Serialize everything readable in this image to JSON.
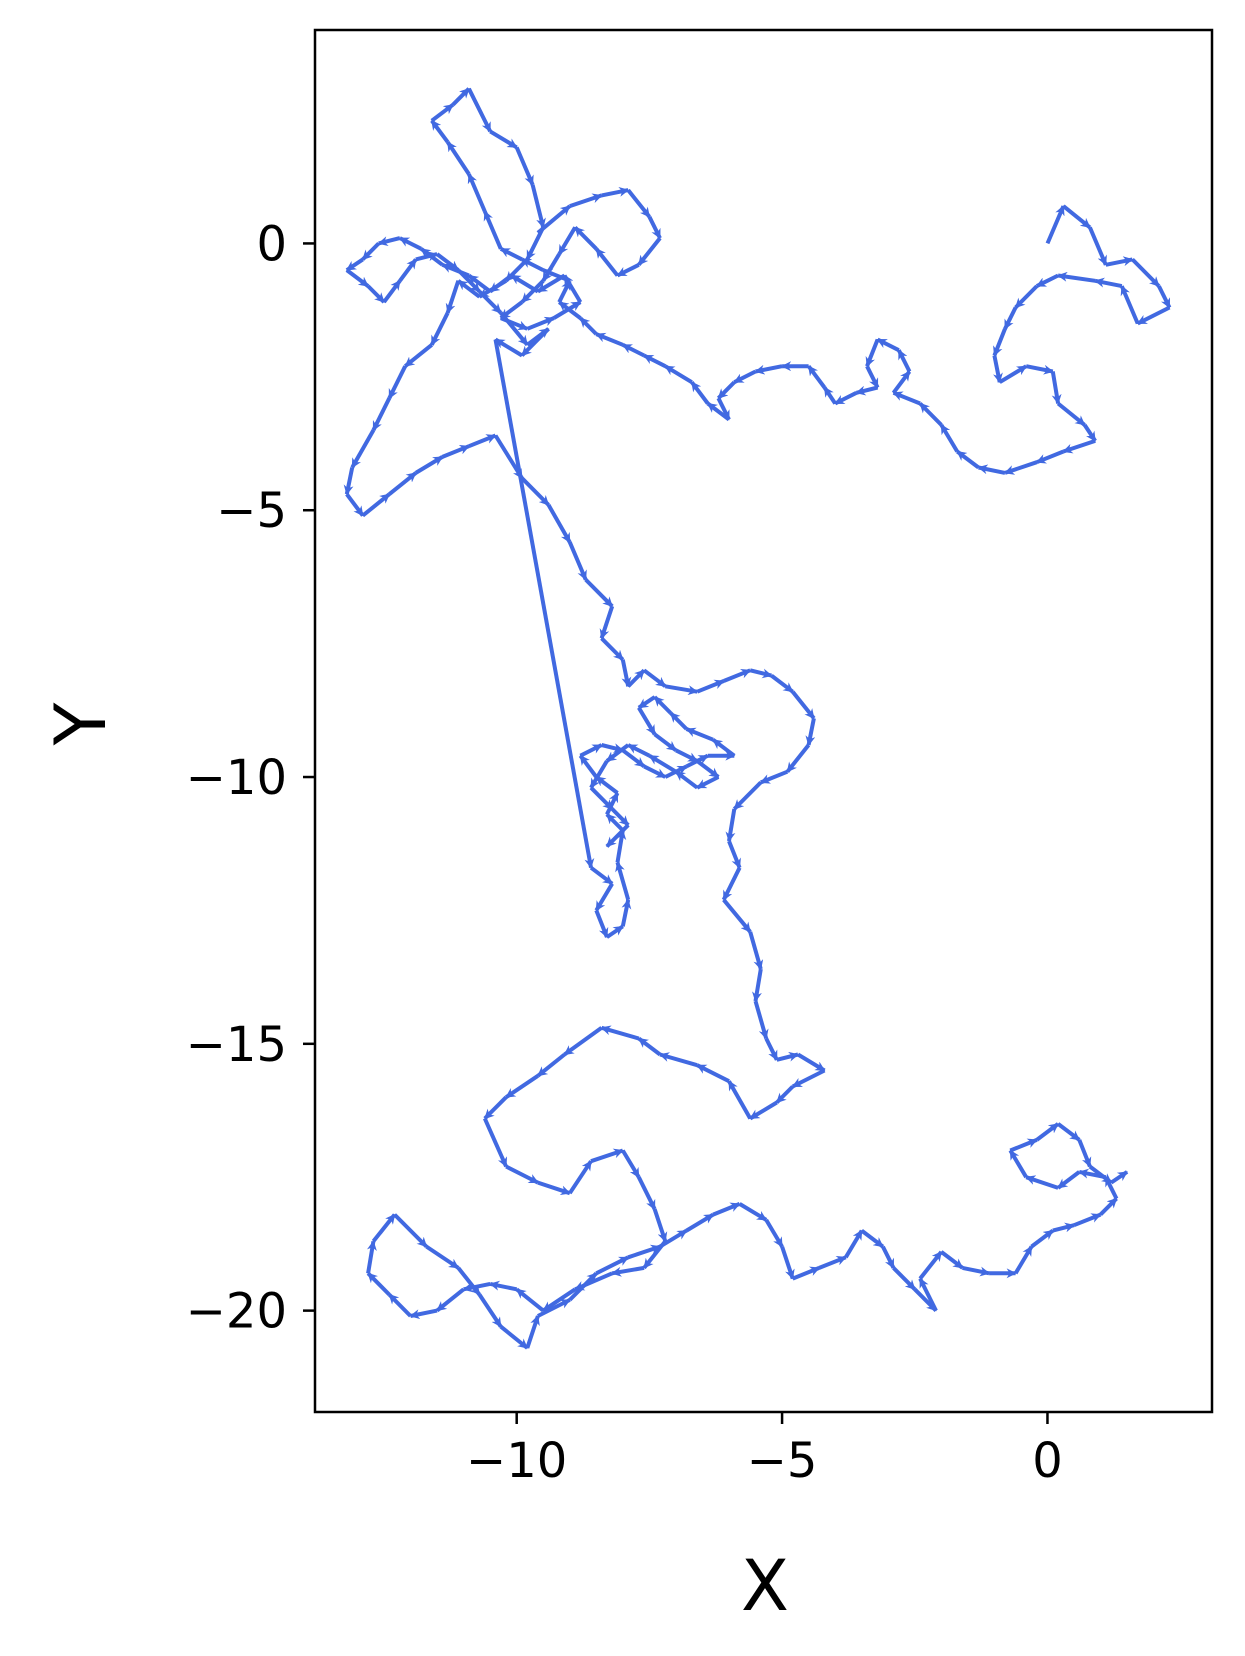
{
  "chart_data": {
    "type": "quiver",
    "xlabel": "X",
    "ylabel": "Y",
    "xlim": [
      -13.8,
      3.1
    ],
    "ylim": [
      -21.9,
      4.0
    ],
    "grid": false,
    "legend": "none",
    "colors": {
      "arrow": "#4169e1",
      "frame": "#000000",
      "background": "#ffffff"
    },
    "xticks": [
      {
        "value": -10,
        "label": "−10"
      },
      {
        "value": -5,
        "label": "−5"
      },
      {
        "value": 0,
        "label": "0"
      }
    ],
    "yticks": [
      {
        "value": 0,
        "label": "0"
      },
      {
        "value": -5,
        "label": "−5"
      },
      {
        "value": -10,
        "label": "−10"
      },
      {
        "value": -15,
        "label": "−15"
      },
      {
        "value": -20,
        "label": "−20"
      }
    ],
    "series": [
      {
        "points": [
          [
            0.0,
            0.0
          ],
          [
            0.3,
            0.7
          ],
          [
            0.8,
            0.3
          ],
          [
            1.1,
            -0.4
          ],
          [
            1.6,
            -0.3
          ],
          [
            2.1,
            -0.8
          ],
          [
            2.3,
            -1.2
          ],
          [
            1.7,
            -1.5
          ],
          [
            1.4,
            -0.8
          ],
          [
            0.9,
            -0.7
          ],
          [
            0.2,
            -0.6
          ],
          [
            -0.2,
            -0.8
          ],
          [
            -0.6,
            -1.2
          ],
          [
            -0.8,
            -1.6
          ],
          [
            -1.0,
            -2.1
          ],
          [
            -0.9,
            -2.6
          ],
          [
            -0.4,
            -2.3
          ],
          [
            0.1,
            -2.4
          ],
          [
            0.2,
            -3.0
          ],
          [
            0.7,
            -3.4
          ],
          [
            0.9,
            -3.7
          ],
          [
            0.3,
            -3.9
          ],
          [
            -0.2,
            -4.1
          ],
          [
            -0.8,
            -4.3
          ],
          [
            -1.3,
            -4.2
          ],
          [
            -1.7,
            -3.9
          ],
          [
            -2.0,
            -3.4
          ],
          [
            -2.4,
            -3.0
          ],
          [
            -2.9,
            -2.8
          ],
          [
            -2.6,
            -2.4
          ],
          [
            -2.8,
            -2.0
          ],
          [
            -3.2,
            -1.8
          ],
          [
            -3.4,
            -2.3
          ],
          [
            -3.2,
            -2.7
          ],
          [
            -3.6,
            -2.8
          ],
          [
            -4.0,
            -3.0
          ],
          [
            -4.2,
            -2.7
          ],
          [
            -4.5,
            -2.3
          ],
          [
            -5.0,
            -2.3
          ],
          [
            -5.5,
            -2.4
          ],
          [
            -5.9,
            -2.6
          ],
          [
            -6.2,
            -2.9
          ],
          [
            -6.0,
            -3.3
          ],
          [
            -6.4,
            -3.0
          ],
          [
            -6.7,
            -2.6
          ],
          [
            -7.2,
            -2.3
          ],
          [
            -7.6,
            -2.1
          ],
          [
            -8.0,
            -1.9
          ],
          [
            -8.5,
            -1.7
          ],
          [
            -8.8,
            -1.4
          ],
          [
            -9.2,
            -1.1
          ],
          [
            -9.0,
            -0.7
          ],
          [
            -9.5,
            -0.5
          ],
          [
            -9.9,
            -0.3
          ],
          [
            -10.3,
            -0.1
          ],
          [
            -10.6,
            0.6
          ],
          [
            -10.9,
            1.3
          ],
          [
            -11.3,
            1.9
          ],
          [
            -11.6,
            2.3
          ],
          [
            -11.2,
            2.6
          ],
          [
            -10.9,
            2.9
          ],
          [
            -10.5,
            2.1
          ],
          [
            -10.0,
            1.8
          ],
          [
            -9.7,
            1.1
          ],
          [
            -9.5,
            0.3
          ],
          [
            -9.8,
            -0.3
          ],
          [
            -10.2,
            -0.7
          ],
          [
            -10.7,
            -1.0
          ],
          [
            -11.1,
            -0.7
          ],
          [
            -11.3,
            -1.3
          ],
          [
            -11.6,
            -1.9
          ],
          [
            -12.1,
            -2.3
          ],
          [
            -12.4,
            -2.9
          ],
          [
            -12.7,
            -3.5
          ],
          [
            -13.1,
            -4.2
          ],
          [
            -13.2,
            -4.7
          ],
          [
            -12.9,
            -5.1
          ],
          [
            -12.4,
            -4.7
          ],
          [
            -11.9,
            -4.3
          ],
          [
            -11.4,
            -4.0
          ],
          [
            -10.9,
            -3.8
          ],
          [
            -10.4,
            -3.6
          ],
          [
            -9.9,
            -4.4
          ],
          [
            -9.4,
            -4.9
          ],
          [
            -9.0,
            -5.6
          ],
          [
            -8.7,
            -6.3
          ],
          [
            -8.2,
            -6.8
          ],
          [
            -8.4,
            -7.4
          ],
          [
            -8.0,
            -7.8
          ],
          [
            -7.9,
            -8.3
          ],
          [
            -7.6,
            -8.0
          ],
          [
            -7.2,
            -8.3
          ],
          [
            -6.6,
            -8.4
          ],
          [
            -6.1,
            -8.2
          ],
          [
            -5.6,
            -8.0
          ],
          [
            -5.2,
            -8.1
          ],
          [
            -4.8,
            -8.4
          ],
          [
            -4.4,
            -8.9
          ],
          [
            -4.5,
            -9.4
          ],
          [
            -4.9,
            -9.9
          ],
          [
            -5.4,
            -10.1
          ],
          [
            -5.9,
            -10.6
          ],
          [
            -6.0,
            -11.2
          ],
          [
            -5.8,
            -11.7
          ],
          [
            -6.1,
            -12.3
          ],
          [
            -5.6,
            -12.9
          ],
          [
            -5.4,
            -13.6
          ],
          [
            -5.5,
            -14.2
          ],
          [
            -5.3,
            -14.9
          ],
          [
            -5.1,
            -15.3
          ],
          [
            -4.7,
            -15.2
          ],
          [
            -4.2,
            -15.5
          ],
          [
            -4.8,
            -15.8
          ],
          [
            -5.1,
            -16.1
          ],
          [
            -5.6,
            -16.4
          ],
          [
            -6.0,
            -15.7
          ],
          [
            -6.6,
            -15.4
          ],
          [
            -7.3,
            -15.2
          ],
          [
            -7.7,
            -14.9
          ],
          [
            -8.4,
            -14.7
          ],
          [
            -9.1,
            -15.2
          ],
          [
            -9.6,
            -15.6
          ],
          [
            -10.2,
            -16.0
          ],
          [
            -10.6,
            -16.4
          ],
          [
            -10.2,
            -17.3
          ],
          [
            -9.6,
            -17.6
          ],
          [
            -9.0,
            -17.8
          ],
          [
            -8.6,
            -17.2
          ],
          [
            -8.0,
            -17.0
          ],
          [
            -7.7,
            -17.5
          ],
          [
            -7.4,
            -18.1
          ],
          [
            -7.2,
            -18.7
          ],
          [
            -7.6,
            -19.2
          ],
          [
            -8.2,
            -19.3
          ],
          [
            -8.9,
            -19.6
          ],
          [
            -9.5,
            -20.0
          ],
          [
            -10.0,
            -19.6
          ],
          [
            -10.5,
            -19.5
          ],
          [
            -11.0,
            -19.6
          ],
          [
            -11.5,
            -20.0
          ],
          [
            -12.0,
            -20.1
          ],
          [
            -12.4,
            -19.7
          ],
          [
            -12.8,
            -19.3
          ],
          [
            -12.7,
            -18.7
          ],
          [
            -12.3,
            -18.2
          ],
          [
            -11.7,
            -18.8
          ],
          [
            -11.1,
            -19.2
          ],
          [
            -10.7,
            -19.7
          ],
          [
            -10.3,
            -20.3
          ],
          [
            -9.8,
            -20.7
          ],
          [
            -9.6,
            -20.1
          ],
          [
            -9.0,
            -19.8
          ],
          [
            -8.5,
            -19.3
          ],
          [
            -7.9,
            -19.0
          ],
          [
            -7.3,
            -18.8
          ],
          [
            -6.8,
            -18.5
          ],
          [
            -6.3,
            -18.2
          ],
          [
            -5.8,
            -18.0
          ],
          [
            -5.3,
            -18.3
          ],
          [
            -5.0,
            -18.8
          ],
          [
            -4.8,
            -19.4
          ],
          [
            -4.3,
            -19.2
          ],
          [
            -3.8,
            -19.0
          ],
          [
            -3.5,
            -18.5
          ],
          [
            -3.1,
            -18.8
          ],
          [
            -2.9,
            -19.2
          ],
          [
            -2.5,
            -19.6
          ],
          [
            -2.1,
            -20.0
          ],
          [
            -2.4,
            -19.4
          ],
          [
            -2.0,
            -18.9
          ],
          [
            -1.6,
            -19.2
          ],
          [
            -1.1,
            -19.3
          ],
          [
            -0.6,
            -19.3
          ],
          [
            -0.3,
            -18.8
          ],
          [
            0.1,
            -18.5
          ],
          [
            0.5,
            -18.4
          ],
          [
            1.0,
            -18.2
          ],
          [
            1.3,
            -17.9
          ],
          [
            1.1,
            -17.5
          ],
          [
            0.6,
            -17.4
          ],
          [
            0.2,
            -17.7
          ],
          [
            -0.4,
            -17.5
          ],
          [
            -0.7,
            -17.0
          ],
          [
            -0.2,
            -16.8
          ],
          [
            0.2,
            -16.5
          ],
          [
            0.6,
            -16.8
          ],
          [
            0.8,
            -17.3
          ],
          [
            1.2,
            -17.6
          ],
          [
            1.5,
            -17.4
          ]
        ]
      },
      {
        "points": [
          [
            -9.6,
            0.2
          ],
          [
            -9.0,
            0.7
          ],
          [
            -8.4,
            0.9
          ],
          [
            -7.9,
            1.0
          ],
          [
            -7.5,
            0.5
          ],
          [
            -7.3,
            0.1
          ],
          [
            -7.7,
            -0.4
          ],
          [
            -8.1,
            -0.6
          ],
          [
            -8.5,
            -0.1
          ],
          [
            -8.9,
            0.3
          ],
          [
            -9.2,
            -0.2
          ],
          [
            -9.5,
            -0.7
          ],
          [
            -9.9,
            -1.1
          ],
          [
            -10.3,
            -1.4
          ],
          [
            -9.8,
            -1.6
          ],
          [
            -9.3,
            -1.4
          ],
          [
            -8.8,
            -1.1
          ],
          [
            -9.1,
            -0.6
          ],
          [
            -9.6,
            -0.9
          ],
          [
            -10.1,
            -0.6
          ],
          [
            -10.5,
            -0.9
          ],
          [
            -10.9,
            -0.6
          ],
          [
            -11.4,
            -0.4
          ],
          [
            -11.8,
            -0.1
          ],
          [
            -12.2,
            0.1
          ],
          [
            -12.6,
            0.0
          ],
          [
            -12.9,
            -0.3
          ],
          [
            -13.2,
            -0.5
          ],
          [
            -12.8,
            -0.8
          ],
          [
            -12.5,
            -1.1
          ],
          [
            -12.2,
            -0.7
          ],
          [
            -11.9,
            -0.3
          ],
          [
            -11.5,
            -0.2
          ],
          [
            -11.1,
            -0.5
          ],
          [
            -10.7,
            -0.9
          ],
          [
            -10.3,
            -1.3
          ],
          [
            -9.8,
            -1.9
          ],
          [
            -9.4,
            -1.6
          ],
          [
            -9.9,
            -2.1
          ],
          [
            -10.4,
            -1.8
          ],
          [
            -8.6,
            -11.7
          ],
          [
            -8.2,
            -12.0
          ],
          [
            -8.5,
            -12.5
          ],
          [
            -8.3,
            -13.0
          ],
          [
            -8.0,
            -12.8
          ],
          [
            -7.9,
            -12.3
          ],
          [
            -8.1,
            -11.6
          ],
          [
            -8.0,
            -11.0
          ],
          [
            -8.3,
            -10.7
          ],
          [
            -8.1,
            -10.3
          ],
          [
            -8.5,
            -10.0
          ],
          [
            -8.8,
            -9.6
          ],
          [
            -8.4,
            -9.4
          ],
          [
            -8.0,
            -9.5
          ],
          [
            -7.6,
            -9.8
          ],
          [
            -7.2,
            -10.0
          ],
          [
            -6.8,
            -9.8
          ],
          [
            -6.4,
            -9.6
          ],
          [
            -5.9,
            -9.6
          ],
          [
            -6.3,
            -9.3
          ],
          [
            -6.8,
            -9.1
          ],
          [
            -7.1,
            -8.8
          ],
          [
            -7.4,
            -8.5
          ],
          [
            -7.7,
            -8.7
          ],
          [
            -7.4,
            -9.2
          ],
          [
            -7.0,
            -9.5
          ],
          [
            -6.6,
            -9.7
          ],
          [
            -6.2,
            -10.0
          ],
          [
            -6.6,
            -10.2
          ],
          [
            -7.0,
            -9.9
          ],
          [
            -7.5,
            -9.6
          ],
          [
            -7.9,
            -9.4
          ],
          [
            -8.3,
            -9.7
          ],
          [
            -8.6,
            -10.2
          ],
          [
            -8.2,
            -10.6
          ],
          [
            -7.9,
            -10.9
          ],
          [
            -8.3,
            -11.3
          ]
        ]
      }
    ]
  }
}
